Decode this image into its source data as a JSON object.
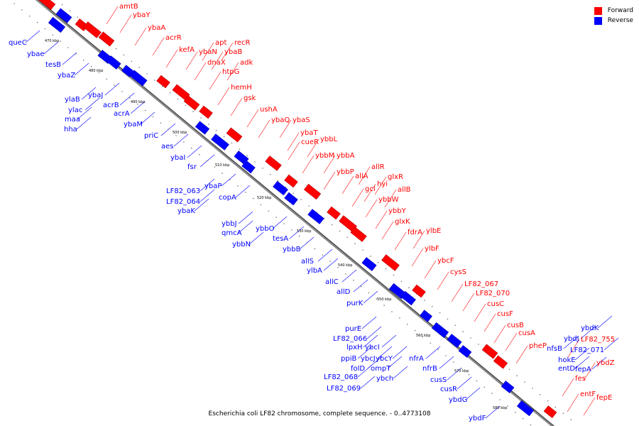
{
  "legend": {
    "forward": {
      "label": "Forward",
      "color": "#ff0000"
    },
    "reverse": {
      "label": "Reverse",
      "color": "#0000ff"
    }
  },
  "caption": "Escherichia coli LF82 chromosome, complete sequence. - 0..4773108",
  "tick_labels": [
    "470 kbp",
    "480 kbp",
    "490 kbp",
    "500 kbp",
    "510 kbp",
    "520 kbp",
    "530 kbp",
    "540 kbp",
    "550 kbp",
    "560 kbp",
    "570 kbp",
    "580 kbp"
  ],
  "forward_labels": [
    "amtB",
    "ybaY",
    "ybaA",
    "acrR",
    "kefA",
    "apt",
    "recR",
    "ybaN",
    "ybaB",
    "dnaX",
    "adk",
    "htpG",
    "hemH",
    "gsk",
    "ushA",
    "ybaQ",
    "ybaS",
    "ybaT",
    "cueR",
    "ybbL",
    "ybbM",
    "ybbA",
    "ybbP",
    "allR",
    "allA",
    "glxR",
    "hyi",
    "gcl",
    "allB",
    "ybbW",
    "ybbY",
    "glxK",
    "fdrA",
    "ylbE",
    "ylbF",
    "ybcF",
    "cysS",
    "LF82_067",
    "LF82_070",
    "cusC",
    "cusF",
    "cusB",
    "cusA",
    "pheP",
    "LF82_755",
    "ybdZ",
    "fes",
    "entF",
    "fepE"
  ],
  "reverse_labels": [
    "queC",
    "ybae",
    "tesB",
    "ybaZ",
    "ylaB",
    "ybaJ",
    "ylac",
    "maa",
    "hha",
    "acrB",
    "acrA",
    "ybaM",
    "priC",
    "aes",
    "ybaI",
    "fsr",
    "LF82_063",
    "ybaP",
    "LF82_064",
    "ybaK",
    "copA",
    "ybbJ",
    "qmcA",
    "ybbN",
    "ybbO",
    "tesA",
    "ybbB",
    "allS",
    "ylbA",
    "allC",
    "allD",
    "purK",
    "purE",
    "LF82_066",
    "lpxH",
    "ybcI",
    "ppiB",
    "ybcJ",
    "ybcY",
    "folD",
    "ompT",
    "LF82_068",
    "ybch",
    "LF82_069",
    "nfrA",
    "nfrB",
    "cusS",
    "cusR",
    "ybdG",
    "ybdF",
    "ybdK",
    "ybdJ",
    "nfsB",
    "LF82_071",
    "hokE",
    "entD",
    "fepA"
  ]
}
